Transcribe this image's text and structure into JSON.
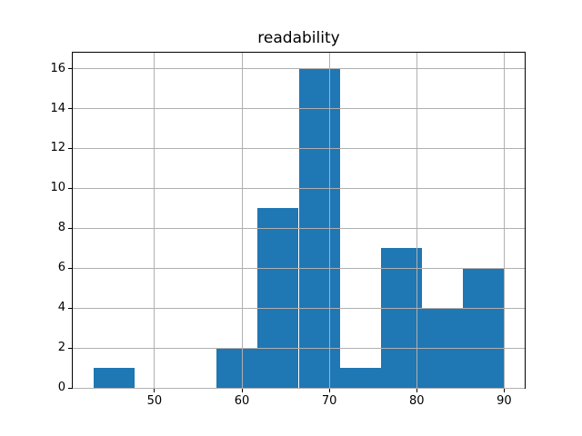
{
  "chart_data": {
    "type": "histogram",
    "title": "readability",
    "xlabel": "",
    "ylabel": "",
    "bin_edges": [
      43.0,
      47.7,
      52.4,
      57.1,
      61.8,
      66.5,
      71.2,
      75.9,
      80.6,
      85.3,
      90.0
    ],
    "counts": [
      1,
      0,
      0,
      2,
      9,
      16,
      1,
      7,
      4,
      6
    ],
    "total_count": 46,
    "xticks": [
      50,
      60,
      70,
      80,
      90
    ],
    "yticks": [
      0,
      2,
      4,
      6,
      8,
      10,
      12,
      14,
      16
    ],
    "xlim": [
      40.65,
      92.35
    ],
    "ylim": [
      0,
      16.8
    ],
    "grid": true,
    "grid_over_bars": true,
    "legend": null,
    "colors": {
      "bar": "#1f77b4",
      "grid": "#b0b0b0",
      "frame": "#000000",
      "background": "#ffffff",
      "text": "#000000"
    }
  }
}
